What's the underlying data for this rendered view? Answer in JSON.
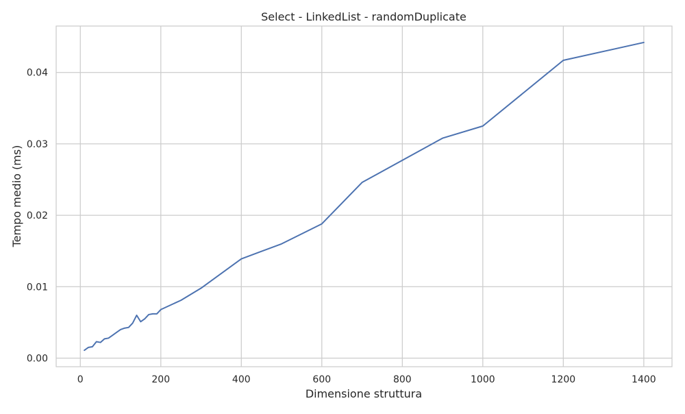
{
  "chart_data": {
    "type": "line",
    "title": "Select - LinkedList - randomDuplicate",
    "xlabel": "Dimensione struttura",
    "ylabel": "Tempo medio (ms)",
    "xlim": [
      -60,
      1470
    ],
    "ylim": [
      -0.0012,
      0.0465
    ],
    "xticks": [
      0,
      200,
      400,
      600,
      800,
      1000,
      1200,
      1400
    ],
    "xtick_labels": [
      "0",
      "200",
      "400",
      "600",
      "800",
      "1000",
      "1200",
      "1400"
    ],
    "yticks": [
      0.0,
      0.01,
      0.02,
      0.03,
      0.04
    ],
    "ytick_labels": [
      "0.00",
      "0.01",
      "0.02",
      "0.03",
      "0.04"
    ],
    "grid": true,
    "series": [
      {
        "color": "#4c72b0",
        "x": [
          10,
          20,
          30,
          40,
          50,
          60,
          70,
          80,
          90,
          100,
          110,
          120,
          130,
          140,
          150,
          160,
          170,
          180,
          190,
          200,
          250,
          300,
          400,
          500,
          600,
          700,
          800,
          900,
          1000,
          1200,
          1400
        ],
        "y": [
          0.0011,
          0.0015,
          0.0016,
          0.0023,
          0.0022,
          0.0027,
          0.0028,
          0.0032,
          0.0036,
          0.004,
          0.0042,
          0.0043,
          0.0049,
          0.006,
          0.0051,
          0.0055,
          0.0061,
          0.0062,
          0.0062,
          0.0068,
          0.0081,
          0.0098,
          0.0139,
          0.016,
          0.0188,
          0.0246,
          0.0277,
          0.0308,
          0.0325,
          0.0417,
          0.0442
        ]
      }
    ]
  }
}
